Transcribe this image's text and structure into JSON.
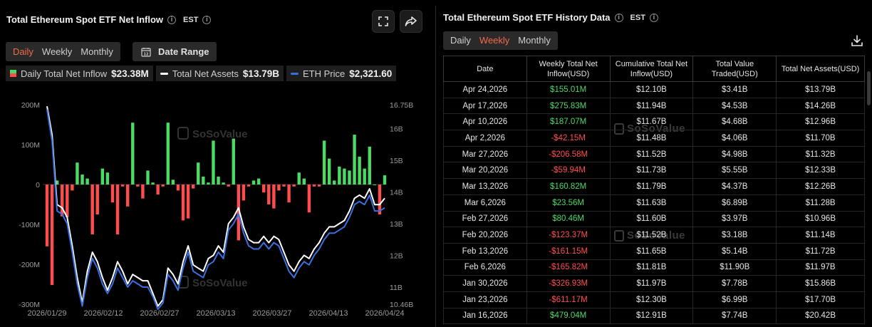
{
  "left_panel": {
    "title": "Total Ethereum Spot ETF Net Inflow",
    "timezone": "EST",
    "tabs": [
      {
        "label": "Daily",
        "active": true
      },
      {
        "label": "Weekly",
        "active": false
      },
      {
        "label": "Monthly",
        "active": false
      }
    ],
    "date_range_label": "Date Range",
    "legend": [
      {
        "label": "Daily Total Net Inflow",
        "value": "$23.38M"
      },
      {
        "label": "Total Net Assets",
        "value": "$13.79B"
      },
      {
        "label": "ETH Price",
        "value": "$2,321.60"
      }
    ],
    "watermark": "SoSoValue"
  },
  "chart_data": {
    "type": "bar",
    "x_ticks": [
      "2026/01/29",
      "2026/02/12",
      "2026/02/27",
      "2026/03/13",
      "2026/03/27",
      "2026/04/13",
      "2026/04/24"
    ],
    "y_left_ticks": [
      "200M",
      "100M",
      "0",
      "-100M",
      "-200M",
      "-300M"
    ],
    "y_left_range": [
      -300,
      200
    ],
    "y_right_ticks": [
      "16.75B",
      "16B",
      "15B",
      "14B",
      "13B",
      "12B",
      "11B",
      "10.46B"
    ],
    "y_right_range": [
      10.46,
      16.75
    ],
    "series": [
      {
        "name": "Daily Total Net Inflow",
        "values": [
          -155,
          -252,
          10,
          -80,
          -82,
          -15,
          55,
          25,
          15,
          -125,
          -75,
          40,
          30,
          -45,
          -125,
          -5,
          -55,
          155,
          -5,
          -35,
          35,
          5,
          -25,
          -5,
          155,
          12,
          -15,
          -90,
          -85,
          -10,
          55,
          20,
          5,
          110,
          20,
          5,
          -5,
          115,
          -140,
          -40,
          -5,
          10,
          15,
          -20,
          -50,
          -60,
          -15,
          -5,
          -45,
          -5,
          30,
          15,
          -70,
          -5,
          -5,
          110,
          65,
          10,
          45,
          40,
          35,
          125,
          70,
          40,
          95,
          0,
          -75,
          23
        ]
      },
      {
        "name": "Total Net Assets",
        "values": [
          16.7,
          15.8,
          13.6,
          13.5,
          13.2,
          12.3,
          11.3,
          10.5,
          11.5,
          12.1,
          11.8,
          11.3,
          10.9,
          11.3,
          11.8,
          11.5,
          11.1,
          11.4,
          11.3,
          11.2,
          11.2,
          10.8,
          10.4,
          10.6,
          11.6,
          11.4,
          11.1,
          11.8,
          12.3,
          11.7,
          11.6,
          11.5,
          11.9,
          12.0,
          12.3,
          12.1,
          13.0,
          13.2,
          13.5,
          12.9,
          12.5,
          12.4,
          12.4,
          12.6,
          12.4,
          12.6,
          12.5,
          12.1,
          11.7,
          11.5,
          11.8,
          12.0,
          11.9,
          12.2,
          12.4,
          12.7,
          12.9,
          12.9,
          13.0,
          13.1,
          13.4,
          13.8,
          13.9,
          13.8,
          14.1,
          13.6,
          13.6,
          13.8
        ]
      },
      {
        "name": "ETH Price",
        "values": [
          16.6,
          15.6,
          13.4,
          13.3,
          13.0,
          12.1,
          11.1,
          10.4,
          11.3,
          11.9,
          11.6,
          11.1,
          10.8,
          11.1,
          11.6,
          11.3,
          11.0,
          11.2,
          11.1,
          11.0,
          11.0,
          10.7,
          10.3,
          10.5,
          11.4,
          11.2,
          10.9,
          11.6,
          12.1,
          11.5,
          11.4,
          11.3,
          11.7,
          11.8,
          12.1,
          11.9,
          12.8,
          13.0,
          13.3,
          12.7,
          12.3,
          12.2,
          12.2,
          12.4,
          12.2,
          12.4,
          12.3,
          11.9,
          11.5,
          11.3,
          11.6,
          11.8,
          11.7,
          12.0,
          12.2,
          12.5,
          12.7,
          12.7,
          12.8,
          12.9,
          13.2,
          13.6,
          13.7,
          13.6,
          13.9,
          13.4,
          13.4,
          13.5
        ]
      }
    ],
    "grid": false,
    "legend": "top-left"
  },
  "right_panel": {
    "title": "Total Ethereum Spot ETF History Data",
    "timezone": "EST",
    "tabs": [
      {
        "label": "Daily",
        "active": false
      },
      {
        "label": "Weekly",
        "active": true
      },
      {
        "label": "Monthly",
        "active": false
      }
    ],
    "watermark": "SoSoValue",
    "table": {
      "headers": [
        "Date",
        "Weekly Total Net Inflow(USD)",
        "Cumulative Total Net Inflow(USD)",
        "Total Value Traded(USD)",
        "Total Net Assets(USD)"
      ],
      "rows": [
        [
          "Apr 24,2026",
          "$155.01M",
          "$12.10B",
          "$3.41B",
          "$13.79B"
        ],
        [
          "Apr 17,2026",
          "$275.83M",
          "$11.94B",
          "$4.53B",
          "$14.26B"
        ],
        [
          "Apr 10,2026",
          "$187.07M",
          "$11.67B",
          "$4.68B",
          "$12.96B"
        ],
        [
          "Apr 2,2026",
          "-$42.15M",
          "$11.48B",
          "$4.06B",
          "$11.70B"
        ],
        [
          "Mar 27,2026",
          "-$206.58M",
          "$11.52B",
          "$4.98B",
          "$11.32B"
        ],
        [
          "Mar 20,2026",
          "-$59.94M",
          "$11.73B",
          "$5.55B",
          "$12.33B"
        ],
        [
          "Mar 13,2026",
          "$160.82M",
          "$11.79B",
          "$4.37B",
          "$12.26B"
        ],
        [
          "Mar 6,2026",
          "$23.56M",
          "$11.63B",
          "$6.89B",
          "$11.28B"
        ],
        [
          "Feb 27,2026",
          "$80.46M",
          "$11.60B",
          "$3.97B",
          "$10.96B"
        ],
        [
          "Feb 20,2026",
          "-$123.37M",
          "$11.52B",
          "$3.18B",
          "$11.14B"
        ],
        [
          "Feb 13,2026",
          "-$161.15M",
          "$11.65B",
          "$5.14B",
          "$11.72B"
        ],
        [
          "Feb 6,2026",
          "-$165.82M",
          "$11.81B",
          "$11.90B",
          "$11.97B"
        ],
        [
          "Jan 30,2026",
          "-$326.93M",
          "$11.97B",
          "$7.78B",
          "$15.86B"
        ],
        [
          "Jan 23,2026",
          "-$611.17M",
          "$12.30B",
          "$6.99B",
          "$17.70B"
        ],
        [
          "Jan 16,2026",
          "$479.04M",
          "$12.91B",
          "$7.74B",
          "$20.42B"
        ]
      ]
    }
  },
  "colors": {
    "accent": "#f26a4b",
    "positive": "#4cd964",
    "negative": "#ff4d4f",
    "assets_line": "#ffffff",
    "price_line": "#3b6fe0"
  }
}
